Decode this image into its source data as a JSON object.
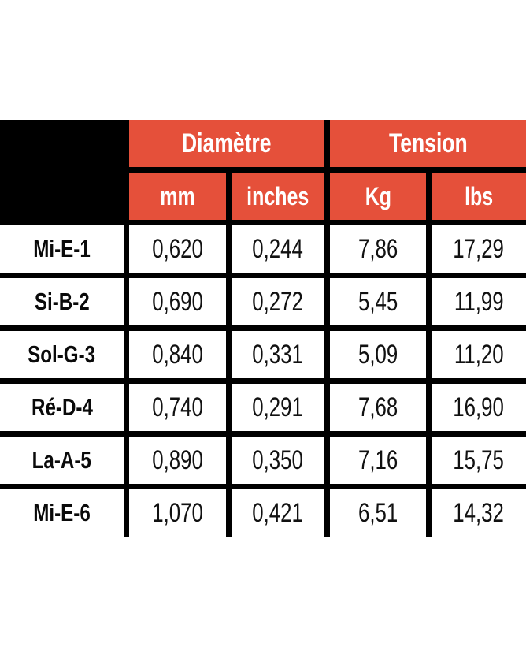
{
  "colors": {
    "accent_orange": "#E5503A",
    "grid_black": "#000000",
    "header_text": "#FFFFFF",
    "data_text": "#111111"
  },
  "table": {
    "group_headers": [
      {
        "label": "Diamètre"
      },
      {
        "label": "Tension"
      }
    ],
    "unit_headers": [
      "mm",
      "inches",
      "Kg",
      "lbs"
    ],
    "rows": [
      {
        "label": "Mi-E-1",
        "values": [
          "0,620",
          "0,244",
          "7,86",
          "17,29"
        ]
      },
      {
        "label": "Si-B-2",
        "values": [
          "0,690",
          "0,272",
          "5,45",
          "11,99"
        ]
      },
      {
        "label": "Sol-G-3",
        "values": [
          "0,840",
          "0,331",
          "5,09",
          "11,20"
        ]
      },
      {
        "label": "Ré-D-4",
        "values": [
          "0,740",
          "0,291",
          "7,68",
          "16,90"
        ]
      },
      {
        "label": "La-A-5",
        "values": [
          "0,890",
          "0,350",
          "7,16",
          "15,75"
        ]
      },
      {
        "label": "Mi-E-6",
        "values": [
          "1,070",
          "0,421",
          "6,51",
          "14,32"
        ]
      }
    ]
  }
}
